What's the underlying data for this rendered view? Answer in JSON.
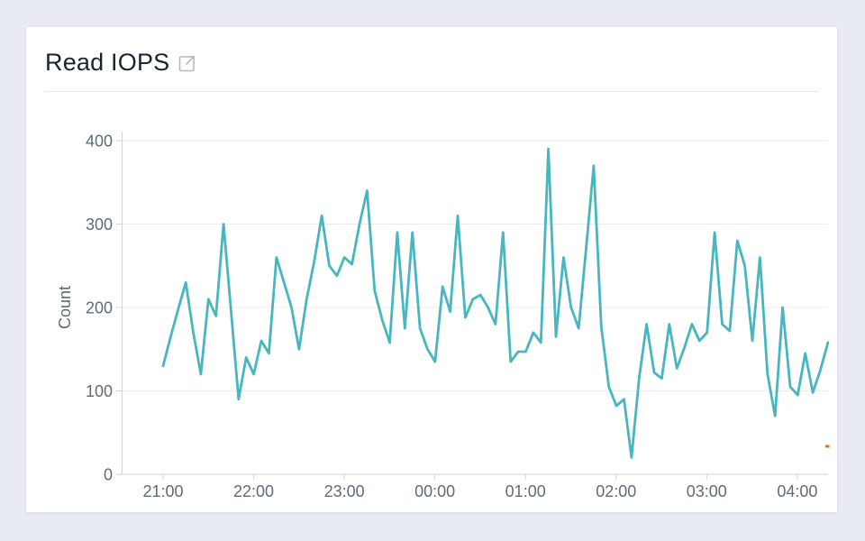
{
  "card": {
    "title": "Read IOPS",
    "title_icon": "external-link-icon"
  },
  "chart_data": {
    "type": "line",
    "title": "Read IOPS",
    "xlabel": "",
    "ylabel": "Count",
    "ylim": [
      0,
      400
    ],
    "y_ticks": [
      0,
      100,
      200,
      300,
      400
    ],
    "y_tick_labels": [
      "0",
      "100",
      "200",
      "300",
      "400"
    ],
    "x_tick_labels": [
      "21:00",
      "22:00",
      "23:00",
      "00:00",
      "01:00",
      "02:00",
      "03:00",
      "04:00"
    ],
    "grid": "horizontal",
    "legend": "none",
    "line_color": "#47b6bf",
    "start_time": "21:00",
    "end_time": "04:20",
    "interval_minutes": 5,
    "series": [
      {
        "name": "Read IOPS",
        "color": "#47b6bf",
        "values": [
          130,
          165,
          198,
          230,
          170,
          120,
          210,
          190,
          300,
          195,
          90,
          140,
          120,
          160,
          145,
          260,
          230,
          200,
          150,
          210,
          255,
          310,
          250,
          238,
          260,
          252,
          300,
          340,
          220,
          185,
          158,
          290,
          175,
          290,
          175,
          150,
          135,
          225,
          195,
          310,
          188,
          210,
          215,
          200,
          180,
          290,
          135,
          147,
          147,
          170,
          158,
          390,
          165,
          260,
          200,
          175,
          272,
          370,
          177,
          105,
          82,
          90,
          20,
          115,
          180,
          122,
          115,
          180,
          127,
          152,
          180,
          160,
          170,
          290,
          180,
          172,
          280,
          250,
          160,
          260,
          120,
          70,
          200,
          105,
          95,
          145,
          98,
          125,
          158
        ]
      }
    ],
    "annotations": [
      {
        "type": "marker",
        "label": "orange-marker",
        "color": "#d8742c",
        "time": "04:18",
        "value": 33
      }
    ]
  }
}
